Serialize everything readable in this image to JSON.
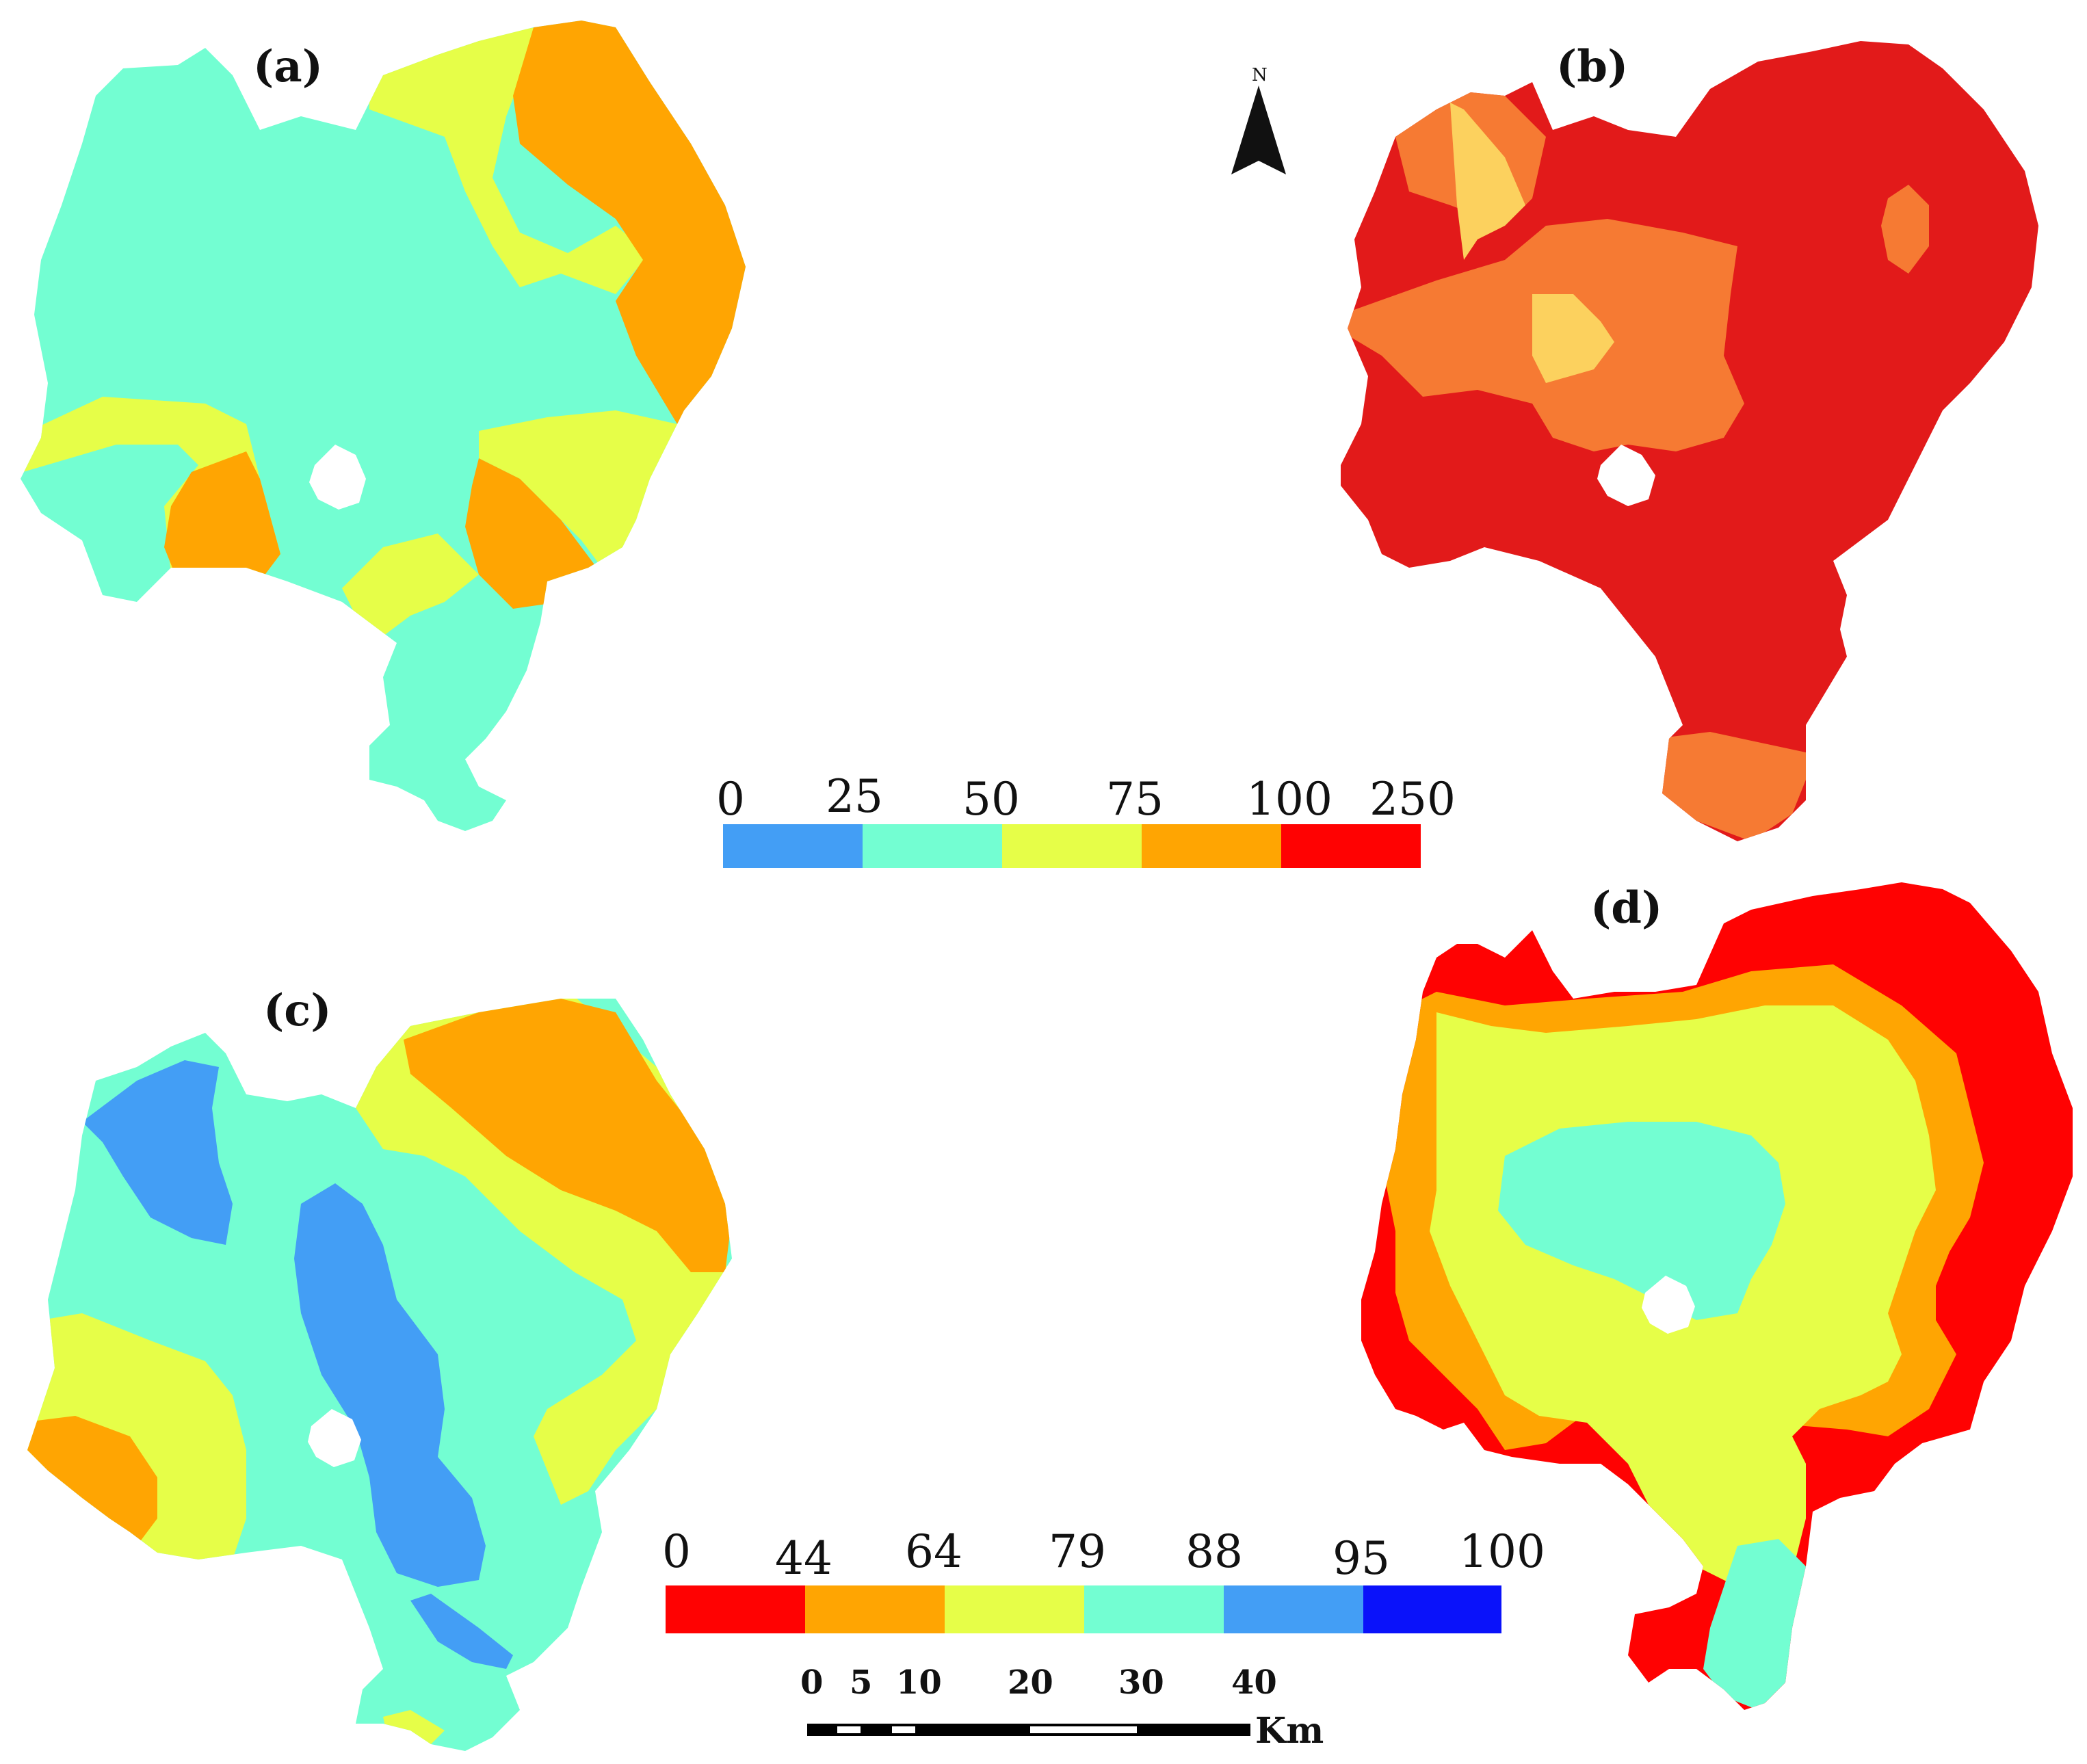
{
  "panels": [
    {
      "label": "(a)",
      "classes": [
        "25-50",
        "50-75",
        "75-100"
      ]
    },
    {
      "label": "(b)",
      "classes": [
        "100-250"
      ]
    },
    {
      "label": "(c)",
      "classes": [
        "0-25",
        "25-50",
        "50-75",
        "75-100"
      ]
    },
    {
      "label": "(d)",
      "classes": [
        "0-44",
        "44-64",
        "64-79",
        "79-88",
        "88-95"
      ]
    }
  ],
  "legend_top": {
    "ticks": [
      "0",
      "25",
      "50",
      "75",
      "100",
      "250"
    ],
    "colors": [
      "#439ef5",
      "#73fed2",
      "#e6fe48",
      "#ffa502",
      "#ff0202"
    ]
  },
  "legend_bottom": {
    "ticks": [
      "0",
      "44",
      "64",
      "79",
      "88",
      "95",
      "100"
    ],
    "colors": [
      "#ff0202",
      "#ffa502",
      "#e6fe48",
      "#73fed2",
      "#439ef5",
      "#0a12fa"
    ]
  },
  "scale_bar": {
    "ticks": [
      "0",
      "5",
      "10",
      "20",
      "30",
      "40"
    ],
    "unit": "Km"
  },
  "north_arrow": {
    "letter": "N",
    "icon": "north-arrow-icon"
  },
  "colors": {
    "cyan": "#73fed2",
    "yellow": "#e6fe48",
    "orange": "#ffa502",
    "red": "#ff0202",
    "blue": "#439ef5",
    "dark_red": "#e21a1a",
    "light_orange": "#f67a33",
    "pale_orange": "#fcd15e"
  }
}
